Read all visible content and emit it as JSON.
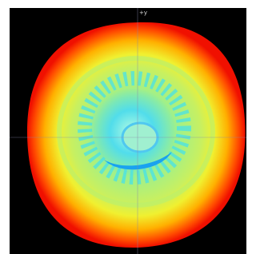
{
  "axis_label": "+y"
}
